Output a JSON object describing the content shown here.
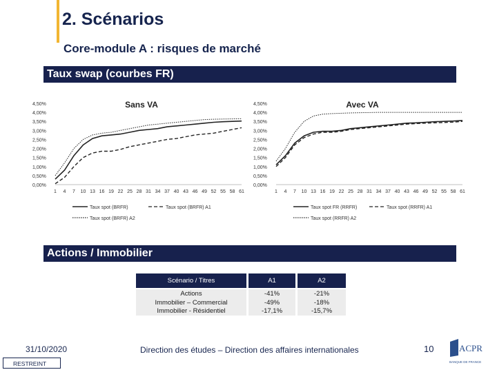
{
  "header": {
    "title": "2. Scénarios",
    "subtitle": "Core-module A : risques de marché"
  },
  "sections": {
    "rates": "Taux swap (courbes FR)",
    "equity": "Actions / Immobilier"
  },
  "colors": {
    "navy": "#17214d",
    "accent": "#f2b632"
  },
  "chart_data": [
    {
      "type": "line",
      "title": "Sans VA",
      "x_ticks": [
        "1",
        "4",
        "7",
        "10",
        "13",
        "16",
        "19",
        "22",
        "25",
        "28",
        "31",
        "34",
        "37",
        "40",
        "43",
        "46",
        "49",
        "52",
        "55",
        "58",
        "61"
      ],
      "y_ticks": [
        "0,00%",
        "0,50%",
        "1,00%",
        "1,50%",
        "2,00%",
        "2,50%",
        "3,00%",
        "3,50%",
        "4,00%",
        "4,50%"
      ],
      "ylim": [
        0,
        4.5
      ],
      "legend": [
        "Taux spot (BRFR)",
        "Taux spot (BRFR) A1",
        "Taux spot (BRFR) A2"
      ],
      "series": [
        {
          "name": "Taux spot (BRFR)",
          "style": "solid",
          "x": [
            1,
            4,
            7,
            10,
            13,
            16,
            19,
            22,
            25,
            28,
            31,
            34,
            37,
            40,
            43,
            46,
            49,
            52,
            55,
            58,
            61
          ],
          "values": [
            0.3,
            0.8,
            1.6,
            2.2,
            2.55,
            2.7,
            2.75,
            2.8,
            2.9,
            3.0,
            3.05,
            3.1,
            3.2,
            3.25,
            3.3,
            3.35,
            3.4,
            3.45,
            3.48,
            3.5,
            3.52
          ]
        },
        {
          "name": "Taux spot (BRFR) A1",
          "style": "dashed",
          "x": [
            1,
            4,
            7,
            10,
            13,
            16,
            19,
            22,
            25,
            28,
            31,
            34,
            37,
            40,
            43,
            46,
            49,
            52,
            55,
            58,
            61
          ],
          "values": [
            0.05,
            0.4,
            1.0,
            1.5,
            1.75,
            1.85,
            1.85,
            1.95,
            2.1,
            2.2,
            2.3,
            2.4,
            2.5,
            2.55,
            2.65,
            2.75,
            2.8,
            2.85,
            2.95,
            3.05,
            3.15
          ]
        },
        {
          "name": "Taux spot (BRFR) A2",
          "style": "dotted",
          "x": [
            1,
            4,
            7,
            10,
            13,
            16,
            19,
            22,
            25,
            28,
            31,
            34,
            37,
            40,
            43,
            46,
            49,
            52,
            55,
            58,
            61
          ],
          "values": [
            0.5,
            1.2,
            2.0,
            2.5,
            2.75,
            2.85,
            2.9,
            3.0,
            3.1,
            3.2,
            3.3,
            3.35,
            3.4,
            3.45,
            3.5,
            3.55,
            3.6,
            3.62,
            3.63,
            3.64,
            3.65
          ]
        }
      ]
    },
    {
      "type": "line",
      "title": "Avec VA",
      "x_ticks": [
        "1",
        "4",
        "7",
        "10",
        "13",
        "16",
        "19",
        "22",
        "25",
        "28",
        "31",
        "34",
        "37",
        "40",
        "43",
        "46",
        "49",
        "52",
        "55",
        "58",
        "61"
      ],
      "y_ticks": [
        "0,00%",
        "0,50%",
        "1,00%",
        "1,50%",
        "2,00%",
        "2,50%",
        "3,00%",
        "3,50%",
        "4,00%",
        "4,50%"
      ],
      "ylim": [
        0,
        4.5
      ],
      "legend": [
        "Taux spot FR (RRFR)",
        "Taux spot (RRFR) A1",
        "Taux spot (RRFR) A2"
      ],
      "series": [
        {
          "name": "Taux spot FR (RRFR)",
          "style": "solid",
          "x": [
            1,
            4,
            7,
            10,
            13,
            16,
            19,
            22,
            25,
            28,
            31,
            34,
            37,
            40,
            43,
            46,
            49,
            52,
            55,
            58,
            61
          ],
          "values": [
            1.1,
            1.6,
            2.3,
            2.7,
            2.9,
            2.95,
            2.95,
            3.0,
            3.1,
            3.15,
            3.2,
            3.25,
            3.3,
            3.35,
            3.4,
            3.42,
            3.45,
            3.48,
            3.5,
            3.52,
            3.55
          ]
        },
        {
          "name": "Taux spot (RRFR) A1",
          "style": "dashed",
          "x": [
            1,
            4,
            7,
            10,
            13,
            16,
            19,
            22,
            25,
            28,
            31,
            34,
            37,
            40,
            43,
            46,
            49,
            52,
            55,
            58,
            61
          ],
          "values": [
            1.0,
            1.5,
            2.2,
            2.6,
            2.8,
            2.9,
            2.9,
            2.95,
            3.05,
            3.1,
            3.15,
            3.2,
            3.25,
            3.3,
            3.35,
            3.38,
            3.4,
            3.42,
            3.44,
            3.46,
            3.5
          ]
        },
        {
          "name": "Taux spot (RRFR) A2",
          "style": "dotted",
          "x": [
            1,
            4,
            7,
            10,
            13,
            16,
            19,
            22,
            25,
            28,
            31,
            34,
            37,
            40,
            43,
            46,
            49,
            52,
            55,
            58,
            61
          ],
          "values": [
            1.3,
            2.0,
            2.9,
            3.5,
            3.8,
            3.9,
            3.93,
            3.95,
            3.97,
            3.98,
            3.99,
            4.0,
            4.0,
            4.0,
            4.0,
            4.0,
            4.0,
            4.0,
            4.0,
            4.0,
            4.0
          ]
        }
      ]
    }
  ],
  "table": {
    "headers": [
      "Scénario / Titres",
      "A1",
      "A2"
    ],
    "rows": [
      [
        "Actions",
        "-41%",
        "-21%"
      ],
      [
        "Immobilier – Commercial",
        "-49%",
        "-18%"
      ],
      [
        "Immobilier - Résidentiel",
        "-17,1%",
        "-15,7%"
      ]
    ]
  },
  "footer": {
    "date": "31/10/2020",
    "classification": "RESTREINT",
    "center": "Direction des études – Direction des affaires internationales",
    "page": "10",
    "logo_text": "ACPR",
    "logo_subtext": "BANQUE DE FRANCE"
  }
}
